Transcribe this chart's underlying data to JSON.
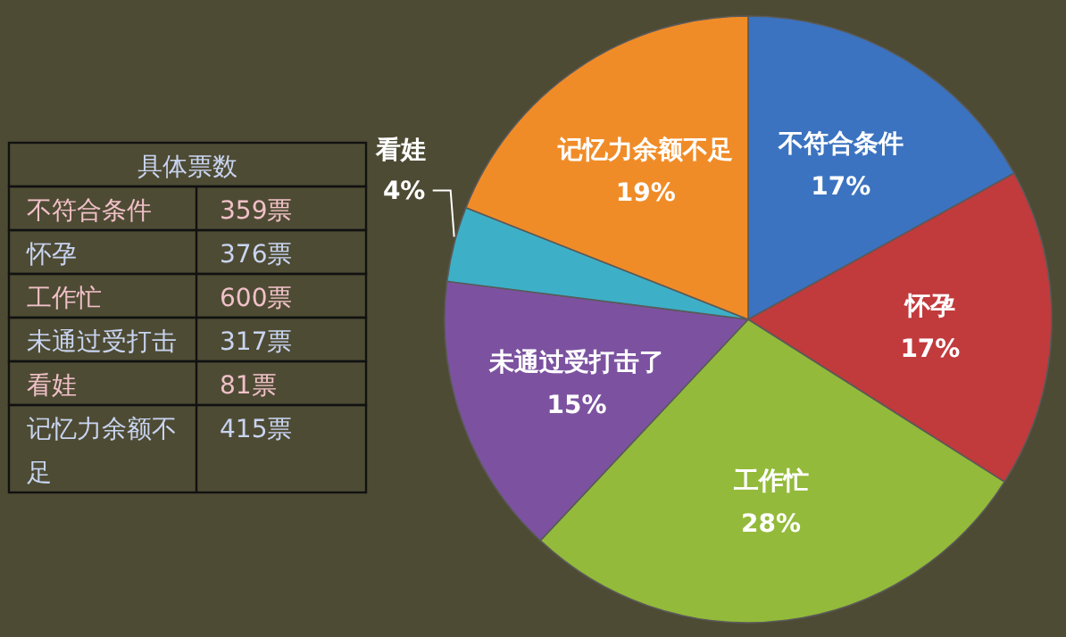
{
  "chart_data": {
    "type": "pie",
    "categories": [
      "不符合条件",
      "怀孕",
      "工作忙",
      "未通过受打击了",
      "看娃",
      "记忆力余额不足"
    ],
    "values": [
      17,
      17,
      28,
      15,
      4,
      19
    ],
    "value_labels": [
      "17%",
      "17%",
      "28%",
      "15%",
      "4%",
      "19%"
    ],
    "colors": [
      "#3b73c0",
      "#c13a3c",
      "#93ba3a",
      "#7c52a0",
      "#3db0c8",
      "#f08c28"
    ],
    "legend_title": "具体票数",
    "annotations": [
      "不符合条件",
      "359票",
      "怀孕",
      "376票",
      "工作忙",
      "600票",
      "未通过受打击",
      "317票",
      "看娃",
      "81票",
      "记忆力余额不足",
      "415票"
    ]
  }
}
